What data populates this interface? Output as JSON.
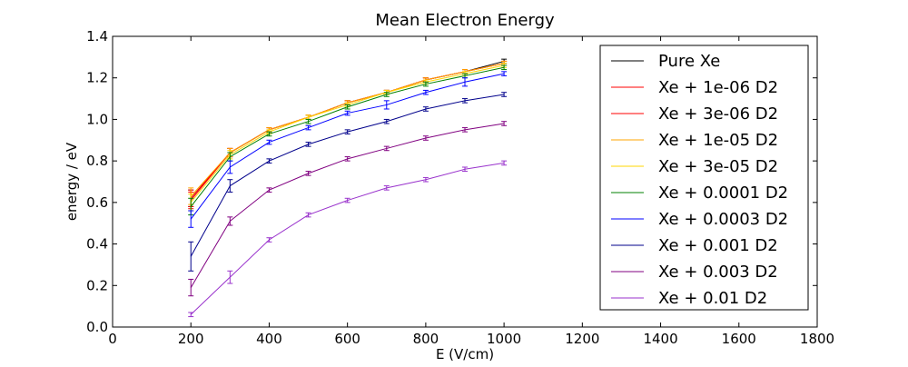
{
  "chart_data": {
    "type": "line",
    "title": "Mean Electron Energy",
    "xlabel": "E (V/cm)",
    "ylabel": "energy / eV",
    "xlim": [
      0,
      1800
    ],
    "ylim": [
      0.0,
      1.4
    ],
    "xticks": [
      0,
      200,
      400,
      600,
      800,
      1000,
      1200,
      1400,
      1600,
      1800
    ],
    "xtick_labels": [
      "0",
      "200",
      "400",
      "600",
      "800",
      "1000",
      "1200",
      "1400",
      "1600",
      "1800"
    ],
    "yticks": [
      0.0,
      0.2,
      0.4,
      0.6,
      0.8,
      1.0,
      1.2,
      1.4
    ],
    "ytick_labels": [
      "0.0",
      "0.2",
      "0.4",
      "0.6",
      "0.8",
      "1.0",
      "1.2",
      "1.4"
    ],
    "grid": false,
    "legend_position": "top-right",
    "x": [
      200,
      300,
      400,
      500,
      600,
      700,
      800,
      900,
      1000
    ],
    "series": [
      {
        "name": "Pure Xe",
        "color": "#000000",
        "values": [
          0.62,
          0.84,
          0.95,
          1.01,
          1.08,
          1.13,
          1.19,
          1.23,
          1.28
        ],
        "errors": [
          0.04,
          0.02,
          0.01,
          0.01,
          0.01,
          0.01,
          0.01,
          0.01,
          0.01
        ]
      },
      {
        "name": "Xe + 1e-06 D2",
        "color": "#ff0000",
        "values": [
          0.62,
          0.84,
          0.95,
          1.01,
          1.08,
          1.13,
          1.19,
          1.23,
          1.27
        ],
        "errors": [
          0.04,
          0.02,
          0.01,
          0.01,
          0.01,
          0.01,
          0.01,
          0.01,
          0.01
        ]
      },
      {
        "name": "Xe + 3e-06 D2",
        "color": "#ff0000",
        "values": [
          0.61,
          0.84,
          0.95,
          1.01,
          1.08,
          1.13,
          1.19,
          1.23,
          1.27
        ],
        "errors": [
          0.04,
          0.02,
          0.01,
          0.01,
          0.01,
          0.01,
          0.01,
          0.01,
          0.01
        ]
      },
      {
        "name": "Xe + 1e-05 D2",
        "color": "#ffa500",
        "values": [
          0.63,
          0.84,
          0.95,
          1.01,
          1.08,
          1.13,
          1.19,
          1.23,
          1.27
        ],
        "errors": [
          0.04,
          0.02,
          0.01,
          0.01,
          0.01,
          0.01,
          0.01,
          0.01,
          0.01
        ]
      },
      {
        "name": "Xe + 3e-05 D2",
        "color": "#ffd700",
        "values": [
          0.6,
          0.83,
          0.94,
          1.01,
          1.07,
          1.13,
          1.18,
          1.22,
          1.26
        ],
        "errors": [
          0.04,
          0.02,
          0.01,
          0.01,
          0.01,
          0.01,
          0.01,
          0.01,
          0.01
        ]
      },
      {
        "name": "Xe + 0.0001 D2",
        "color": "#008000",
        "values": [
          0.58,
          0.82,
          0.93,
          0.99,
          1.06,
          1.12,
          1.17,
          1.21,
          1.25
        ],
        "errors": [
          0.04,
          0.02,
          0.01,
          0.01,
          0.01,
          0.01,
          0.01,
          0.01,
          0.01
        ]
      },
      {
        "name": "Xe + 0.0003 D2",
        "color": "#0000ff",
        "values": [
          0.52,
          0.77,
          0.89,
          0.96,
          1.03,
          1.07,
          1.13,
          1.18,
          1.22
        ],
        "errors": [
          0.04,
          0.03,
          0.01,
          0.01,
          0.01,
          0.02,
          0.01,
          0.02,
          0.01
        ]
      },
      {
        "name": "Xe + 0.001 D2",
        "color": "#00008b",
        "values": [
          0.34,
          0.68,
          0.8,
          0.88,
          0.94,
          0.99,
          1.05,
          1.09,
          1.12
        ],
        "errors": [
          0.07,
          0.03,
          0.01,
          0.01,
          0.01,
          0.01,
          0.01,
          0.01,
          0.01
        ]
      },
      {
        "name": "Xe + 0.003 D2",
        "color": "#800080",
        "values": [
          0.19,
          0.51,
          0.66,
          0.74,
          0.81,
          0.86,
          0.91,
          0.95,
          0.98
        ],
        "errors": [
          0.04,
          0.02,
          0.01,
          0.01,
          0.01,
          0.01,
          0.01,
          0.01,
          0.01
        ]
      },
      {
        "name": "Xe + 0.01 D2",
        "color": "#9932cc",
        "values": [
          0.06,
          0.24,
          0.42,
          0.54,
          0.61,
          0.67,
          0.71,
          0.76,
          0.79
        ],
        "errors": [
          0.01,
          0.03,
          0.01,
          0.01,
          0.01,
          0.01,
          0.01,
          0.01,
          0.01
        ]
      }
    ]
  }
}
